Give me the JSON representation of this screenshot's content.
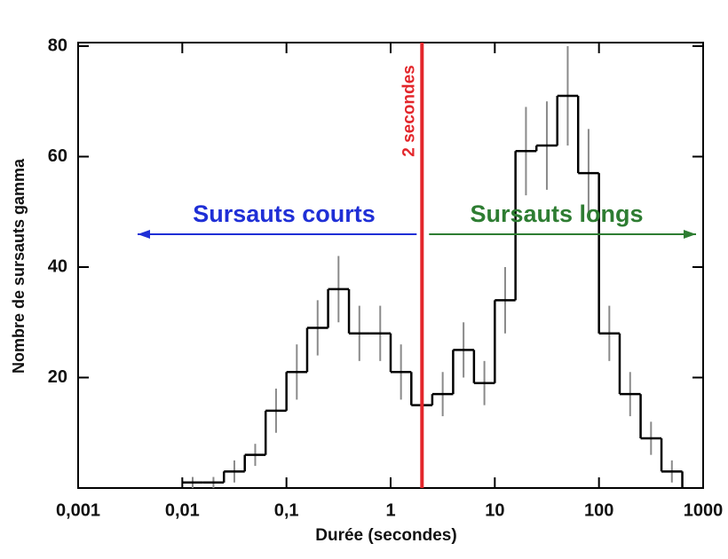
{
  "chart_data": {
    "type": "histogram",
    "xlabel": "Durée (secondes)",
    "ylabel": "Nombre de sursauts gamma",
    "bins": [
      0.01,
      0.0158,
      0.0251,
      0.0398,
      0.0631,
      0.1,
      0.158,
      0.251,
      0.398,
      0.631,
      1,
      1.58,
      2.51,
      3.98,
      6.31,
      10,
      15.8,
      25.1,
      39.8,
      63.1,
      100,
      158,
      251,
      398,
      631
    ],
    "values": [
      1,
      1,
      3,
      6,
      14,
      21,
      29,
      36,
      28,
      28,
      21,
      15,
      17,
      25,
      19,
      34,
      61,
      62,
      71,
      57,
      28,
      17,
      9,
      3
    ],
    "errors": [
      1,
      1,
      2,
      2,
      4,
      5,
      5,
      6,
      5,
      5,
      5,
      4,
      4,
      5,
      4,
      6,
      8,
      8,
      9,
      8,
      5,
      4,
      3,
      2
    ],
    "color": "#000000",
    "error_color": "#8a8a8a",
    "xscale": "log",
    "xlim": [
      0.001,
      1000
    ],
    "xticks": [
      {
        "value": 0.001,
        "label": "0,001"
      },
      {
        "value": 0.01,
        "label": "0,01"
      },
      {
        "value": 0.1,
        "label": "0,1"
      },
      1,
      10,
      100,
      1000
    ],
    "ylim": [
      0,
      80
    ],
    "yticks": [
      20,
      40,
      60,
      80
    ],
    "vline": {
      "x": 2,
      "label": "2 secondes",
      "color": "#e3262b"
    },
    "annotations": [
      {
        "text": "Sursauts courts",
        "color": "#1f2fd6",
        "direction": "left"
      },
      {
        "text": "Sursauts longs",
        "color": "#2e7d32",
        "direction": "right"
      }
    ]
  }
}
